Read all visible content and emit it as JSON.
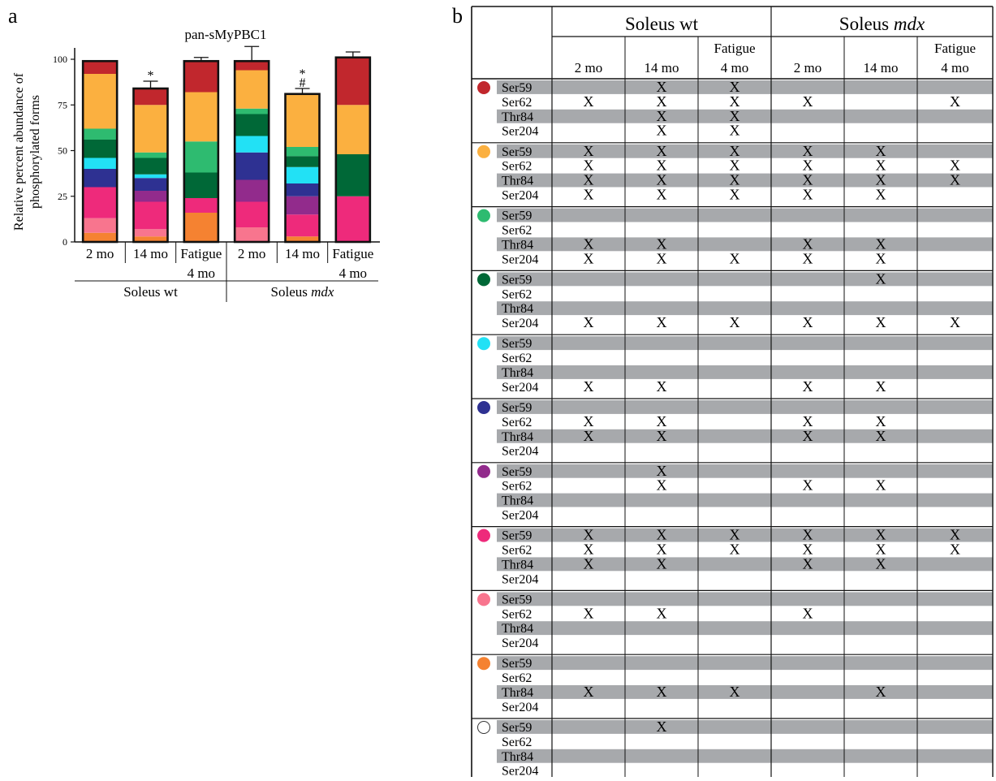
{
  "panel_a": {
    "letter": "a",
    "chart_data": {
      "type": "bar",
      "stacked": true,
      "title": "pan-sMyPBC1",
      "ylabel": "Relative percent abundance of phosphorylated forms",
      "ylim": [
        0,
        100
      ],
      "yticks": [
        "0",
        "25",
        "50",
        "75",
        "100"
      ],
      "categories": [
        "2 mo",
        "14 mo",
        "Fatigue 4 mo",
        "2 mo",
        "14 mo",
        "Fatigue 4 mo"
      ],
      "groups": [
        "Soleus wt",
        "Soleus mdx"
      ],
      "group_label_parts": [
        [
          "Soleus wt",
          ""
        ],
        [
          "Soleus ",
          "mdx"
        ]
      ],
      "error_bars": [
        null,
        88,
        101,
        107,
        84,
        104
      ],
      "significance": [
        "",
        "*",
        "",
        "",
        "*\n#",
        ""
      ],
      "segment_colors": [
        "#f58231",
        "#f8758e",
        "#ee2a7b",
        "#922b8c",
        "#2e3192",
        "#22e1f5",
        "#006837",
        "#2ebb70",
        "#fbb040",
        "#c1272d"
      ],
      "stacks": [
        [
          5,
          8,
          17,
          0,
          10,
          6,
          10,
          6,
          30,
          7
        ],
        [
          3,
          4,
          15,
          6,
          7,
          2,
          9,
          3,
          26,
          9
        ],
        [
          16,
          0,
          8,
          0,
          0,
          0,
          14,
          17,
          27,
          17
        ],
        [
          0,
          8,
          14,
          12,
          15,
          9,
          12,
          3,
          21,
          5
        ],
        [
          3,
          0,
          12,
          10,
          7,
          9,
          6,
          5,
          29,
          0
        ],
        [
          0,
          0,
          25,
          0,
          0,
          0,
          23,
          0,
          27,
          26
        ]
      ]
    }
  },
  "panel_b": {
    "letter": "b",
    "groups": [
      "Soleus wt",
      "Soleus mdx"
    ],
    "group_label_parts": [
      [
        "Soleus wt",
        ""
      ],
      [
        "Soleus ",
        "mdx"
      ]
    ],
    "columns": [
      [
        "",
        "2 mo"
      ],
      [
        "",
        "14 mo"
      ],
      [
        "Fatigue",
        "4 mo"
      ],
      [
        "",
        "2 mo"
      ],
      [
        "",
        "14 mo"
      ],
      [
        "Fatigue",
        "4 mo"
      ]
    ],
    "site_labels": [
      "Ser59",
      "Ser62",
      "Thr84",
      "Ser204"
    ],
    "mark": "X",
    "colors": [
      "#c1272d",
      "#fbb040",
      "#2ebb70",
      "#006837",
      "#22e1f5",
      "#2e3192",
      "#922b8c",
      "#ee2a7b",
      "#f8758e",
      "#f58231",
      "#ffffff"
    ],
    "rows": [
      [
        [
          0,
          1,
          1,
          0,
          0,
          0
        ],
        [
          1,
          1,
          1,
          1,
          0,
          1
        ],
        [
          0,
          1,
          1,
          0,
          0,
          0
        ],
        [
          0,
          1,
          1,
          0,
          0,
          0
        ]
      ],
      [
        [
          1,
          1,
          1,
          1,
          1,
          0
        ],
        [
          1,
          1,
          1,
          1,
          1,
          1
        ],
        [
          1,
          1,
          1,
          1,
          1,
          1
        ],
        [
          1,
          1,
          1,
          1,
          1,
          0
        ]
      ],
      [
        [
          0,
          0,
          0,
          0,
          0,
          0
        ],
        [
          0,
          0,
          0,
          0,
          0,
          0
        ],
        [
          1,
          1,
          0,
          1,
          1,
          0
        ],
        [
          1,
          1,
          1,
          1,
          1,
          0
        ]
      ],
      [
        [
          0,
          0,
          0,
          0,
          1,
          0
        ],
        [
          0,
          0,
          0,
          0,
          0,
          0
        ],
        [
          0,
          0,
          0,
          0,
          0,
          0
        ],
        [
          1,
          1,
          1,
          1,
          1,
          1
        ]
      ],
      [
        [
          0,
          0,
          0,
          0,
          0,
          0
        ],
        [
          0,
          0,
          0,
          0,
          0,
          0
        ],
        [
          0,
          0,
          0,
          0,
          0,
          0
        ],
        [
          1,
          1,
          0,
          1,
          1,
          0
        ]
      ],
      [
        [
          0,
          0,
          0,
          0,
          0,
          0
        ],
        [
          1,
          1,
          0,
          1,
          1,
          0
        ],
        [
          1,
          1,
          0,
          1,
          1,
          0
        ],
        [
          0,
          0,
          0,
          0,
          0,
          0
        ]
      ],
      [
        [
          0,
          1,
          0,
          0,
          0,
          0
        ],
        [
          0,
          1,
          0,
          1,
          1,
          0
        ],
        [
          0,
          0,
          0,
          0,
          0,
          0
        ],
        [
          0,
          0,
          0,
          0,
          0,
          0
        ]
      ],
      [
        [
          1,
          1,
          1,
          1,
          1,
          1
        ],
        [
          1,
          1,
          1,
          1,
          1,
          1
        ],
        [
          1,
          1,
          0,
          1,
          1,
          0
        ],
        [
          0,
          0,
          0,
          0,
          0,
          0
        ]
      ],
      [
        [
          0,
          0,
          0,
          0,
          0,
          0
        ],
        [
          1,
          1,
          0,
          1,
          0,
          0
        ],
        [
          0,
          0,
          0,
          0,
          0,
          0
        ],
        [
          0,
          0,
          0,
          0,
          0,
          0
        ]
      ],
      [
        [
          0,
          0,
          0,
          0,
          0,
          0
        ],
        [
          0,
          0,
          0,
          0,
          0,
          0
        ],
        [
          1,
          1,
          1,
          0,
          1,
          0
        ],
        [
          0,
          0,
          0,
          0,
          0,
          0
        ]
      ],
      [
        [
          0,
          1,
          0,
          0,
          0,
          0
        ],
        [
          0,
          0,
          0,
          0,
          0,
          0
        ],
        [
          0,
          0,
          0,
          0,
          0,
          0
        ],
        [
          0,
          0,
          0,
          0,
          0,
          0
        ]
      ]
    ]
  }
}
